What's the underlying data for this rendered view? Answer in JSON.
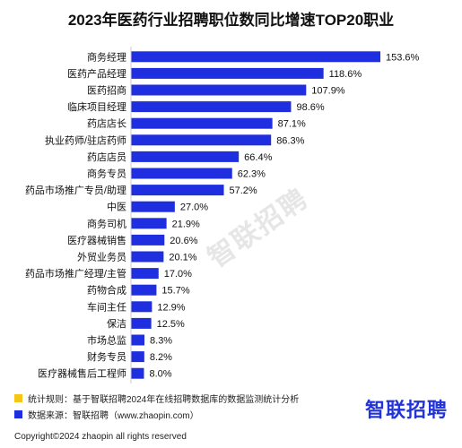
{
  "title": "2023年医药行业招聘职位数同比增速TOP20职业",
  "chart_data": {
    "type": "bar",
    "orientation": "horizontal",
    "categories": [
      "商务经理",
      "医药产品经理",
      "医药招商",
      "临床项目经理",
      "药店店长",
      "执业药师/驻店药师",
      "药店店员",
      "商务专员",
      "药品市场推广专员/助理",
      "中医",
      "商务司机",
      "医疗器械销售",
      "外贸业务员",
      "药品市场推广经理/主管",
      "药物合成",
      "车间主任",
      "保洁",
      "市场总监",
      "财务专员",
      "医疗器械售后工程师"
    ],
    "values": [
      153.6,
      118.6,
      107.9,
      98.6,
      87.1,
      86.3,
      66.4,
      62.3,
      57.2,
      27.0,
      21.9,
      20.6,
      20.1,
      17.0,
      15.7,
      12.9,
      12.5,
      8.3,
      8.2,
      8.0
    ],
    "value_labels": [
      "153.6%",
      "118.6%",
      "107.9%",
      "98.6%",
      "87.1%",
      "86.3%",
      "66.4%",
      "62.3%",
      "57.2%",
      "27.0%",
      "21.9%",
      "20.6%",
      "20.1%",
      "17.0%",
      "15.7%",
      "12.9%",
      "12.5%",
      "8.3%",
      "8.2%",
      "8.0%"
    ],
    "unit": "%",
    "bar_color": "#1f2fe0",
    "xlim": [
      0,
      153.6
    ],
    "grid": false,
    "legend": "none"
  },
  "watermark": "智联招聘",
  "footer": {
    "note": "统计规则：基于智联招聘2024年在线招聘数据库的数据监测统计分析",
    "note_color": "#f5c518",
    "source": "数据来源：智联招聘（www.zhaopin.com）",
    "source_color": "#1f2fe0",
    "logo": "智联招聘",
    "copyright": "Copyright©2024 zhaopin all rights reserved"
  }
}
